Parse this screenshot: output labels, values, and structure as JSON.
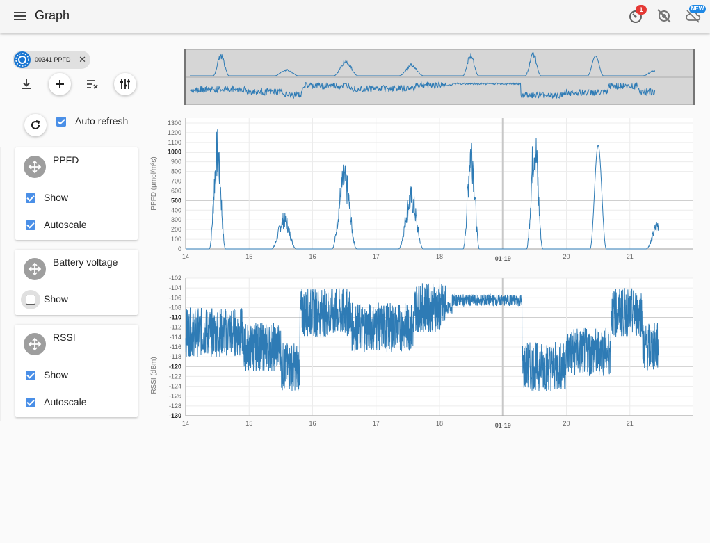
{
  "appbar": {
    "title": "Graph",
    "notification_count": "1",
    "new_badge": "NEW"
  },
  "icons": {
    "menu": "menu-icon",
    "notifications": "notification-gauge-icon",
    "connection": "no-location-icon",
    "cloud": "cloud-off-icon",
    "download": "download-icon",
    "add": "add-icon",
    "clear": "clear-list-icon",
    "tune": "tune-icon",
    "refresh": "refresh-icon",
    "move": "move-icon"
  },
  "device_chip": {
    "label": "00341 PPFD"
  },
  "auto_refresh": {
    "label": "Auto refresh",
    "checked": true
  },
  "series_cards": [
    {
      "title": "PPFD",
      "show_label": "Show",
      "show": true,
      "autoscale_label": "Autoscale",
      "autoscale": true
    },
    {
      "title": "Battery voltage",
      "show_label": "Show",
      "show": false
    },
    {
      "title": "RSSI",
      "show_label": "Show",
      "show": true,
      "autoscale_label": "Autoscale",
      "autoscale": true
    }
  ],
  "colors": {
    "series": "#2e7bb5",
    "accent": "#4a8fe7",
    "badge_red": "#e53935",
    "badge_blue": "#1e88e5"
  },
  "chart_data": [
    {
      "type": "line",
      "ylabel": "PPFD (µmol/m²s)",
      "ylim": [
        0,
        1350
      ],
      "yticks": [
        "0",
        "100",
        "200",
        "300",
        "400",
        "500",
        "600",
        "700",
        "800",
        "900",
        "1000",
        "1100",
        "1200",
        "1300"
      ],
      "xticks": [
        "14",
        "15",
        "16",
        "17",
        "18",
        "01-19",
        "20",
        "21"
      ],
      "xlim": [
        14,
        22
      ],
      "grid": true,
      "peaks": [
        {
          "day": 14.5,
          "max": 1260
        },
        {
          "day": 15.55,
          "max": 380
        },
        {
          "day": 16.5,
          "max": 900
        },
        {
          "day": 17.55,
          "max": 660
        },
        {
          "day": 18.5,
          "max": 1300
        },
        {
          "day": 19.5,
          "max": 1360
        },
        {
          "day": 20.5,
          "max": 1070
        },
        {
          "day": 21.45,
          "max": 320
        }
      ]
    },
    {
      "type": "line",
      "ylabel": "RSSI (dBm)",
      "ylim": [
        -130,
        -102
      ],
      "yticks": [
        "-102",
        "-104",
        "-106",
        "-108",
        "-110",
        "-112",
        "-114",
        "-116",
        "-118",
        "-120",
        "-122",
        "-124",
        "-126",
        "-128",
        "-130"
      ],
      "xticks": [
        "14",
        "15",
        "16",
        "17",
        "18",
        "01-19",
        "20",
        "21"
      ],
      "xlim": [
        14,
        22
      ],
      "grid": true
    }
  ]
}
